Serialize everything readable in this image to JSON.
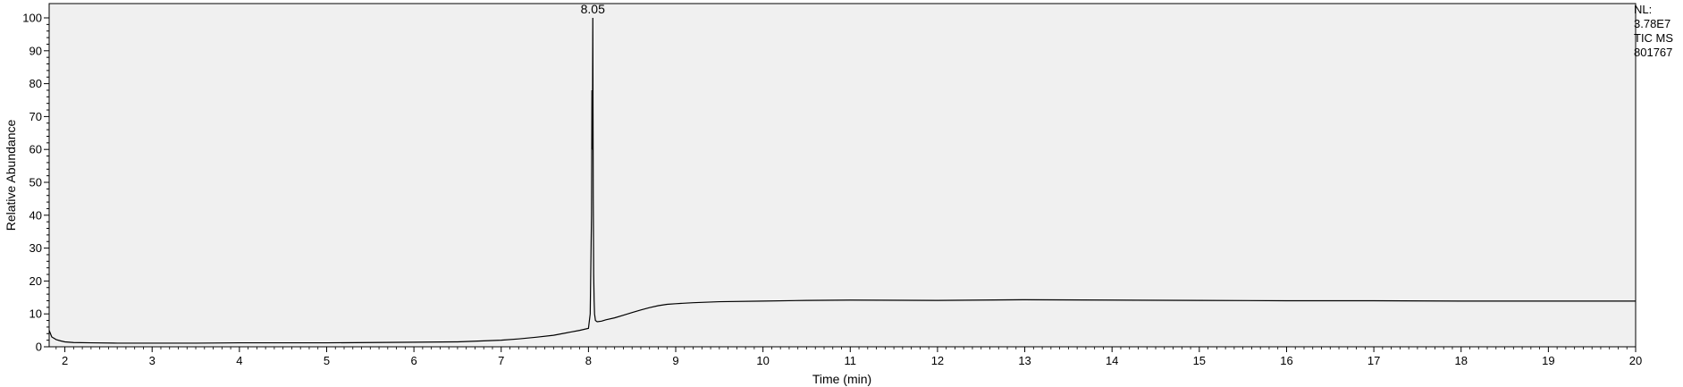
{
  "info": {
    "nl_label": "NL:",
    "nl_value": "3.78E7",
    "scan_filter": "TIC  MS",
    "sample_id": "801767"
  },
  "chart_data": {
    "type": "line",
    "title": "",
    "xlabel": "Time (min)",
    "ylabel": "Relative Abundance",
    "xlim": [
      1.82,
      20.0
    ],
    "ylim": [
      0,
      100
    ],
    "x_ticks": [
      2,
      3,
      4,
      5,
      6,
      7,
      8,
      9,
      10,
      11,
      12,
      13,
      14,
      15,
      16,
      17,
      18,
      19,
      20
    ],
    "y_ticks": [
      0,
      10,
      20,
      30,
      40,
      50,
      60,
      70,
      80,
      90,
      100
    ],
    "grid": false,
    "line_color": "#000000",
    "background_color": "#f0f0f0",
    "peak_annotations": [
      {
        "x": 8.05,
        "y": 100,
        "label": "8.05"
      }
    ],
    "series": [
      {
        "x": [
          1.82,
          1.85,
          1.9,
          1.95,
          2.0,
          2.1,
          2.3,
          2.6,
          3.0,
          3.5,
          4.0,
          4.5,
          5.0,
          5.5,
          6.0,
          6.5,
          7.0,
          7.2,
          7.4,
          7.6,
          7.8,
          7.9,
          8.0,
          8.02,
          8.035,
          8.04,
          8.045,
          8.05,
          8.055,
          8.06,
          8.065,
          8.07,
          8.08,
          8.1,
          8.15,
          8.2,
          8.3,
          8.4,
          8.5,
          8.6,
          8.7,
          8.8,
          8.9,
          9.0,
          9.2,
          9.5,
          10.0,
          10.5,
          11.0,
          12.0,
          13.0,
          14.0,
          15.0,
          16.0,
          17.0,
          18.0,
          19.0,
          20.0
        ],
        "y": [
          5.0,
          3.0,
          2.2,
          1.8,
          1.5,
          1.3,
          1.2,
          1.1,
          1.1,
          1.1,
          1.2,
          1.2,
          1.2,
          1.3,
          1.4,
          1.5,
          2.0,
          2.4,
          2.9,
          3.5,
          4.5,
          5.0,
          5.6,
          10,
          40,
          78,
          60,
          100,
          45,
          22,
          14,
          10,
          8,
          7.6,
          7.8,
          8.2,
          8.8,
          9.6,
          10.4,
          11.2,
          11.9,
          12.5,
          12.9,
          13.1,
          13.4,
          13.7,
          13.9,
          14.1,
          14.2,
          14.1,
          14.3,
          14.2,
          14.1,
          14.0,
          14.0,
          13.9,
          13.9,
          13.9
        ]
      }
    ]
  }
}
